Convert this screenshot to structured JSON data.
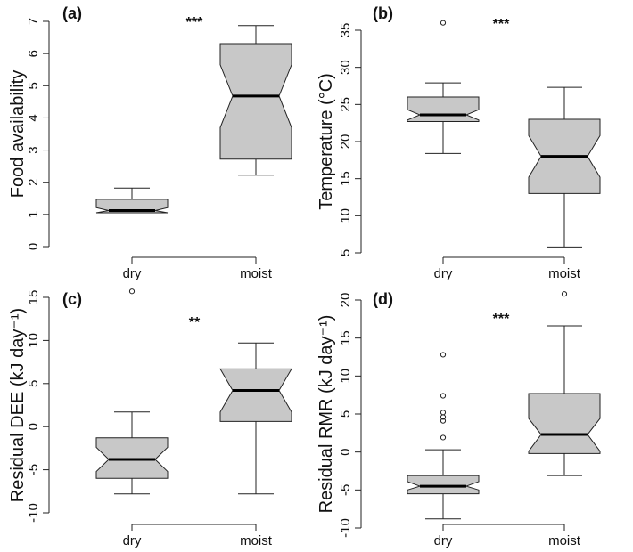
{
  "chart_data": [
    {
      "type": "box",
      "panel_label": "(a)",
      "ylabel": "Food availability",
      "ylim": [
        0,
        7
      ],
      "yticks": [
        0,
        1,
        2,
        3,
        4,
        5,
        6,
        7
      ],
      "categories": [
        "dry",
        "moist"
      ],
      "significance": "***",
      "boxes": [
        {
          "category": "dry",
          "whisker_low": 1.05,
          "q1": 1.05,
          "median": 1.12,
          "q3": 1.47,
          "whisker_high": 1.82,
          "notch_low": 1.03,
          "notch_high": 1.21,
          "outliers": []
        },
        {
          "category": "moist",
          "whisker_low": 2.22,
          "q1": 2.72,
          "median": 4.68,
          "q3": 6.31,
          "whisker_high": 6.87,
          "notch_low": 3.7,
          "notch_high": 5.65,
          "outliers": []
        }
      ]
    },
    {
      "type": "box",
      "panel_label": "(b)",
      "ylabel": "Temperature (°C)",
      "ylim": [
        5,
        35
      ],
      "yticks": [
        5,
        10,
        15,
        20,
        25,
        30,
        35
      ],
      "categories": [
        "dry",
        "moist"
      ],
      "significance": "***",
      "boxes": [
        {
          "category": "dry",
          "whisker_low": 18.4,
          "q1": 22.7,
          "median": 23.6,
          "q3": 26.0,
          "whisker_high": 27.9,
          "notch_low": 22.9,
          "notch_high": 24.3,
          "outliers": [
            36.0
          ]
        },
        {
          "category": "moist",
          "whisker_low": 5.8,
          "q1": 13.0,
          "median": 18.0,
          "q3": 23.0,
          "whisker_high": 27.3,
          "notch_low": 15.2,
          "notch_high": 20.8,
          "outliers": []
        }
      ]
    },
    {
      "type": "box",
      "panel_label": "(c)",
      "ylabel": "Residual DEE (kJ day⁻¹)",
      "ylim": [
        -10,
        15
      ],
      "yticks": [
        -10,
        -5,
        0,
        5,
        10,
        15
      ],
      "categories": [
        "dry",
        "moist"
      ],
      "significance": "**",
      "boxes": [
        {
          "category": "dry",
          "whisker_low": -7.8,
          "q1": -6.0,
          "median": -3.8,
          "q3": -1.3,
          "whisker_high": 1.7,
          "notch_low": -5.2,
          "notch_high": -2.4,
          "outliers": [
            15.7
          ]
        },
        {
          "category": "moist",
          "whisker_low": -7.8,
          "q1": 0.6,
          "median": 4.2,
          "q3": 6.7,
          "whisker_high": 9.7,
          "notch_low": 1.7,
          "notch_high": 6.7,
          "outliers": []
        }
      ]
    },
    {
      "type": "box",
      "panel_label": "(d)",
      "ylabel": "Residual RMR (kJ day⁻¹)",
      "ylim": [
        -10,
        20
      ],
      "yticks": [
        -10,
        -5,
        0,
        5,
        10,
        15,
        20
      ],
      "categories": [
        "dry",
        "moist"
      ],
      "significance": "***",
      "boxes": [
        {
          "category": "dry",
          "whisker_low": -8.8,
          "q1": -5.5,
          "median": -4.5,
          "q3": -3.1,
          "whisker_high": 0.3,
          "notch_low": -5.0,
          "notch_high": -3.9,
          "outliers": [
            1.9,
            4.1,
            4.6,
            5.2,
            7.4,
            12.8
          ]
        },
        {
          "category": "moist",
          "whisker_low": -3.1,
          "q1": -0.2,
          "median": 2.3,
          "q3": 7.7,
          "whisker_high": 16.6,
          "notch_low": 0.1,
          "notch_high": 4.4,
          "outliers": [
            20.8
          ]
        }
      ]
    }
  ],
  "colors": {
    "box_fill": "#c8c8c8",
    "stroke": "#222222",
    "median": "#000000",
    "background": "#ffffff"
  }
}
